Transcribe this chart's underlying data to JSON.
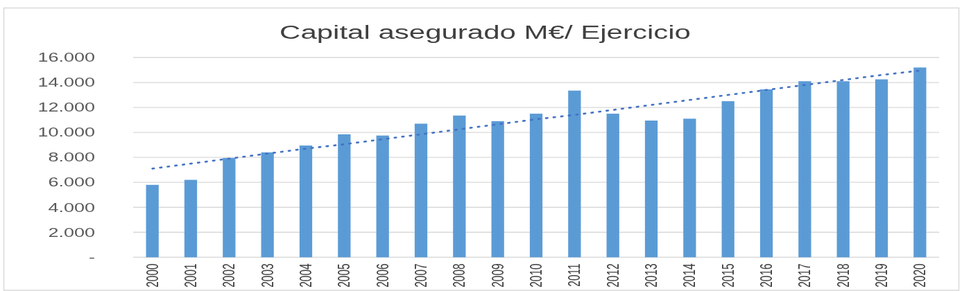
{
  "chart_data": {
    "type": "bar",
    "title": "Capital asegurado M€/ Ejercicio",
    "categories": [
      "2000",
      "2001",
      "2002",
      "2003",
      "2004",
      "2005",
      "2006",
      "2007",
      "2008",
      "2009",
      "2010",
      "2011",
      "2012",
      "2013",
      "2014",
      "2015",
      "2016",
      "2017",
      "2018",
      "2019",
      "2020"
    ],
    "series": [
      {
        "color": "#5b9bd5",
        "values": [
          5800,
          6200,
          7950,
          8400,
          8950,
          9850,
          9750,
          10700,
          11350,
          10900,
          11500,
          13350,
          11500,
          10950,
          11100,
          12500,
          13450,
          14100,
          14100,
          14250,
          15200
        ]
      },
      {
        "type": "line",
        "values": [
          7100,
          7500,
          7900,
          8300,
          8700,
          9050,
          9450,
          9850,
          10250,
          10650,
          11050,
          11400,
          11800,
          12200,
          12600,
          13000,
          13400,
          13800,
          14200,
          14600,
          14950
        ],
        "color": "#4472c4",
        "line_style": "dotted"
      }
    ],
    "ylim": [
      0,
      16000
    ],
    "yticks": [
      {
        "value": 0,
        "label": "-"
      },
      {
        "value": 2000,
        "label": "2.000"
      },
      {
        "value": 4000,
        "label": "4.000"
      },
      {
        "value": 6000,
        "label": "6.000"
      },
      {
        "value": 8000,
        "label": "8.000"
      },
      {
        "value": 10000,
        "label": "10.000"
      },
      {
        "value": 12000,
        "label": "12.000"
      },
      {
        "value": 14000,
        "label": "14.000"
      },
      {
        "value": 16000,
        "label": "16.000"
      }
    ],
    "grid": "y"
  }
}
